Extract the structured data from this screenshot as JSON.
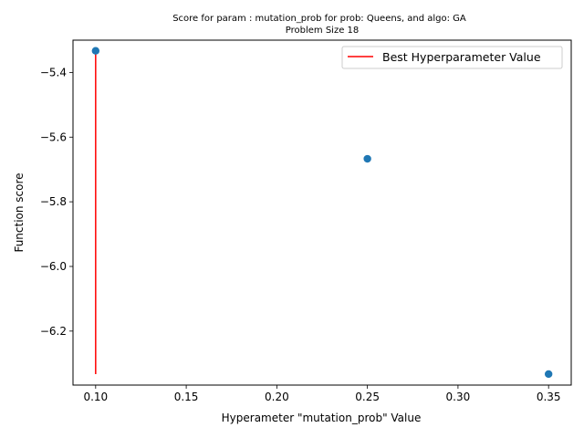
{
  "chart_data": {
    "type": "scatter",
    "title": "Score for param : mutation_prob for prob: Queens, and algo: GA",
    "subtitle": "Problem Size 18",
    "xlabel": "Hyperameter \"mutation_prob\" Value",
    "ylabel": "Function score",
    "xlim": [
      0.0875,
      0.3625
    ],
    "ylim": [
      -6.367,
      -5.3
    ],
    "x_ticks": [
      0.1,
      0.15,
      0.2,
      0.25,
      0.3,
      0.35
    ],
    "x_tick_labels": [
      "0.10",
      "0.15",
      "0.20",
      "0.25",
      "0.30",
      "0.35"
    ],
    "y_ticks": [
      -5.4,
      -5.6,
      -5.8,
      -6.0,
      -6.2
    ],
    "y_tick_labels": [
      "−5.4",
      "−5.6",
      "−5.8",
      "−6.0",
      "−6.2"
    ],
    "grid": false,
    "legend_position": "top-right",
    "series": [
      {
        "type": "scatter",
        "color": "#1f77b4",
        "points": [
          {
            "x": 0.1,
            "y": -5.333
          },
          {
            "x": 0.25,
            "y": -5.667
          },
          {
            "x": 0.35,
            "y": -6.333
          }
        ]
      },
      {
        "type": "vline",
        "name": "Best Hyperparameter Value",
        "color": "#ff0000",
        "x": 0.1,
        "y_from": -6.333,
        "y_to": -5.333
      }
    ]
  }
}
